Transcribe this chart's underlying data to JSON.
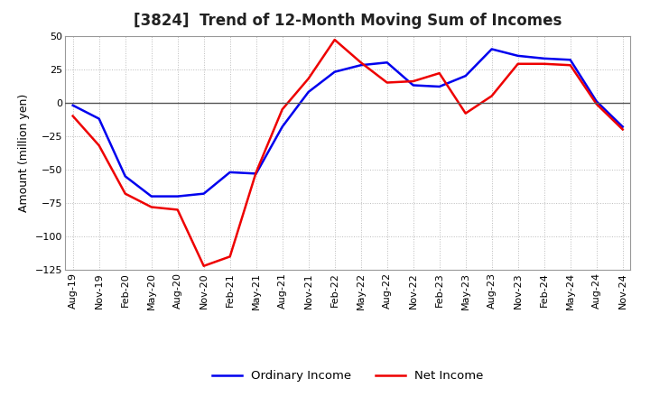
{
  "title": "[3824]  Trend of 12-Month Moving Sum of Incomes",
  "ylabel": "Amount (million yen)",
  "x_labels": [
    "Aug-19",
    "Nov-19",
    "Feb-20",
    "May-20",
    "Aug-20",
    "Nov-20",
    "Feb-21",
    "May-21",
    "Aug-21",
    "Nov-21",
    "Feb-22",
    "May-22",
    "Aug-22",
    "Nov-22",
    "Feb-23",
    "May-23",
    "Aug-23",
    "Nov-23",
    "Feb-24",
    "May-24",
    "Aug-24",
    "Nov-24"
  ],
  "ordinary_income": [
    -2,
    -12,
    -55,
    -70,
    -70,
    -68,
    -52,
    -53,
    -18,
    8,
    23,
    28,
    30,
    13,
    12,
    20,
    40,
    35,
    33,
    32,
    1,
    -18
  ],
  "net_income": [
    -10,
    -32,
    -68,
    -78,
    -80,
    -122,
    -115,
    -52,
    -5,
    18,
    47,
    30,
    15,
    16,
    22,
    -8,
    5,
    29,
    29,
    28,
    -1,
    -20
  ],
  "ordinary_color": "#0000ee",
  "net_color": "#ee0000",
  "ylim": [
    -125,
    50
  ],
  "yticks": [
    -125,
    -100,
    -75,
    -50,
    -25,
    0,
    25,
    50
  ],
  "bg_color": "#ffffff",
  "plot_bg_color": "#ffffff",
  "grid_color": "#bbbbbb",
  "zero_line_color": "#555555",
  "line_width": 1.8,
  "title_fontsize": 12,
  "axis_label_fontsize": 9,
  "tick_fontsize": 8,
  "legend_labels": [
    "Ordinary Income",
    "Net Income"
  ]
}
